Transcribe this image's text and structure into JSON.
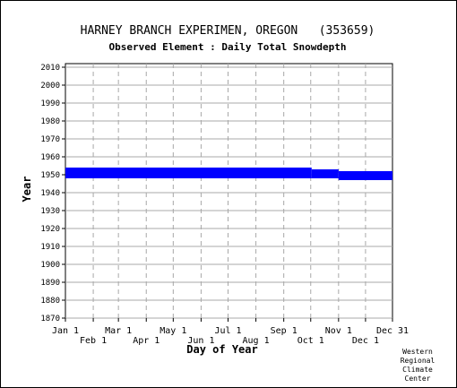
{
  "chart_data": {
    "type": "heatmap",
    "title": "HARNEY BRANCH EXPERIMEN, OREGON   (353659)",
    "subtitle": "Observed Element : Daily Total Snowdepth",
    "xlabel": "Day of Year",
    "ylabel": "Year",
    "x_ticks_upper": [
      "Jan 1",
      "Mar 1",
      "May 1",
      "Jul 1",
      "Sep 1",
      "Nov 1",
      "Dec 31"
    ],
    "x_ticks_lower": [
      "Feb 1",
      "Apr 1",
      "Jun 1",
      "Aug 1",
      "Oct 1",
      "Dec 1"
    ],
    "y_ticks": [
      "2010",
      "2000",
      "1990",
      "1980",
      "1970",
      "1960",
      "1950",
      "1940",
      "1930",
      "1920",
      "1910",
      "1900",
      "1890",
      "1880",
      "1870"
    ],
    "ylim": [
      1870,
      2012
    ],
    "xlim_day_of_year": [
      1,
      365
    ],
    "grid": true,
    "data_color": "#0000ff",
    "record_periods": [
      {
        "start_day": 1,
        "end_day": 275,
        "year_start": 1948,
        "year_end": 1954
      },
      {
        "start_day": 275,
        "end_day": 305,
        "year_start": 1948,
        "year_end": 1953
      },
      {
        "start_day": 305,
        "end_day": 365,
        "year_start": 1947,
        "year_end": 1952
      }
    ]
  },
  "credit": [
    "Western",
    "Regional",
    "Climate",
    "Center"
  ]
}
